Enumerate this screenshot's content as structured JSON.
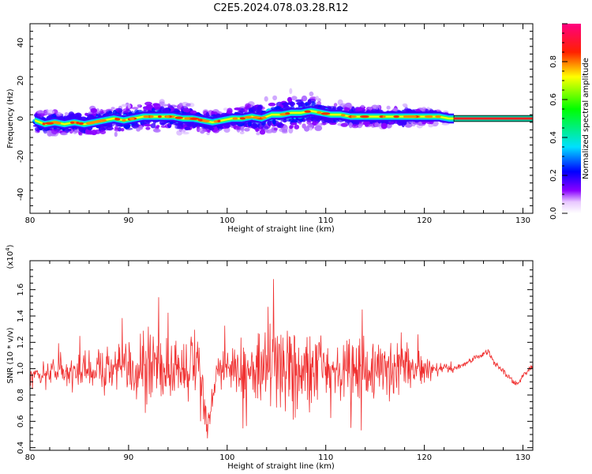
{
  "title": "C2E5.2024.078.03.28.R12",
  "chart_data": [
    {
      "type": "heatmap",
      "title": "",
      "xlabel": "Height of straight line (km)",
      "ylabel": "Frequency (Hz)",
      "xlim": [
        80,
        131
      ],
      "ylim": [
        -50,
        50
      ],
      "xticks": [
        "80",
        "90",
        "100",
        "110",
        "120",
        "130"
      ],
      "yticks": [
        "-40",
        "-20",
        "0",
        "20",
        "40"
      ],
      "colorbar": {
        "label": "Normalized spectral amplitude",
        "ticks": [
          "0.0",
          "0.2",
          "0.4",
          "0.6",
          "0.8"
        ],
        "range": [
          0,
          1
        ]
      },
      "ridge": {
        "x": [
          80.5,
          81.5,
          82.5,
          83.5,
          84.5,
          85.5,
          86.5,
          87.5,
          88.5,
          89.5,
          90.5,
          91.5,
          92.5,
          93.5,
          94.5,
          95.5,
          96.5,
          97.5,
          98.5,
          99.5,
          100.5,
          101.5,
          102.5,
          103.5,
          104.5,
          105.5,
          106.5,
          107.5,
          108.5,
          109.5,
          110.5,
          111.5,
          112.5,
          113.5,
          114.5,
          115.5,
          116.5,
          117.5,
          118.5,
          119.5,
          120.5,
          121.5,
          122.5,
          123,
          131
        ],
        "y": [
          -1,
          -3,
          -2,
          -3,
          -2,
          -3,
          -2,
          -1,
          0,
          -1,
          0,
          1,
          1,
          1,
          1,
          0,
          0,
          -1,
          -2,
          -1,
          0,
          0,
          1,
          0,
          2,
          2,
          3,
          3,
          4,
          3,
          2,
          2,
          1,
          1,
          1,
          1,
          1,
          1,
          1,
          1,
          1,
          1,
          0,
          0,
          0
        ]
      },
      "spread": {
        "x": [
          80,
          85,
          90,
          95,
          100,
          103,
          106,
          108,
          110,
          115,
          118,
          122,
          123
        ],
        "half_width": [
          6,
          6,
          7,
          7,
          5,
          8,
          9,
          9,
          6,
          5,
          5,
          3,
          0
        ]
      },
      "constant_band": {
        "from_x": 123,
        "to_x": 131,
        "y": 0
      }
    },
    {
      "type": "line",
      "title": "",
      "xlabel": "Height of straight line (km)",
      "ylabel": "SNR (10 * v/v)",
      "y_multiplier": "(x10^4)",
      "xlim": [
        80,
        131
      ],
      "ylim": [
        0.38,
        1.82
      ],
      "xticks": [
        "80",
        "90",
        "100",
        "110",
        "120",
        "130"
      ],
      "yticks": [
        "0.4",
        "0.6",
        "0.8",
        "1.0",
        "1.2",
        "1.4",
        "1.6"
      ],
      "series": [
        {
          "color": "#f03030",
          "envelope": {
            "x": [
              80,
              82,
              84,
              86,
              88,
              90,
              91,
              92,
              93,
              94,
              95,
              96,
              97,
              98,
              99,
              100,
              101,
              102,
              103,
              104,
              105,
              106,
              107,
              108,
              109,
              110,
              111,
              112,
              113,
              114,
              115,
              116,
              117,
              118,
              119,
              120,
              121,
              122,
              123
            ],
            "center": [
              0.95,
              0.98,
              0.98,
              1.0,
              1.0,
              0.98,
              1.0,
              1.0,
              1.0,
              1.0,
              1.0,
              1.0,
              1.05,
              0.55,
              0.95,
              1.0,
              1.0,
              1.0,
              1.0,
              1.0,
              1.0,
              1.0,
              1.0,
              1.0,
              1.0,
              1.0,
              1.0,
              1.0,
              1.0,
              1.0,
              1.0,
              1.0,
              1.0,
              1.0,
              1.0,
              1.0,
              1.0,
              1.0,
              1.0
            ],
            "amplitude": [
              0.12,
              0.15,
              0.2,
              0.25,
              0.3,
              0.35,
              0.45,
              0.5,
              0.45,
              0.4,
              0.4,
              0.45,
              0.35,
              0.15,
              0.25,
              0.3,
              0.35,
              0.4,
              0.45,
              0.55,
              0.6,
              0.65,
              0.6,
              0.55,
              0.5,
              0.45,
              0.4,
              0.4,
              0.45,
              0.45,
              0.4,
              0.35,
              0.35,
              0.3,
              0.25,
              0.2,
              0.12,
              0.08,
              0.05
            ]
          },
          "tail": {
            "x": [
              123,
              124,
              125,
              126,
              126.5,
              127,
              128,
              129,
              129.5,
              130,
              131
            ],
            "y": [
              1.0,
              1.03,
              1.08,
              1.11,
              1.13,
              1.05,
              0.98,
              0.9,
              0.88,
              0.95,
              1.02
            ]
          }
        }
      ]
    }
  ]
}
